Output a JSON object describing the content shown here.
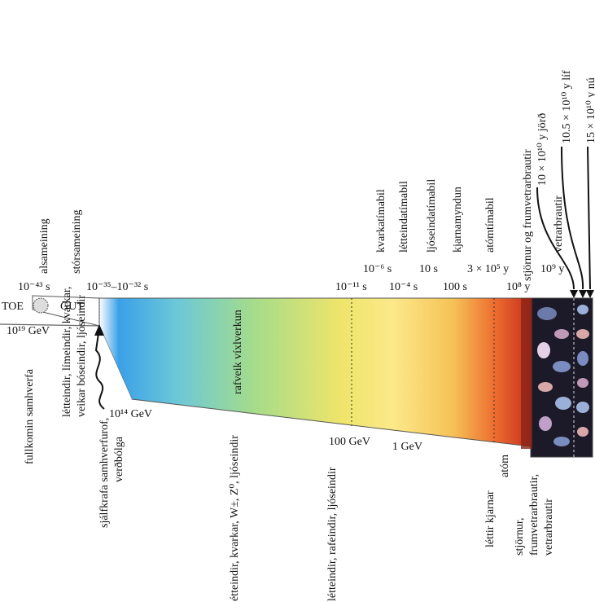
{
  "top_labels": {
    "alsameining": "alsameining",
    "storsameining": "stórsameining",
    "kvarkatimabil": "kvarkatímabil",
    "lettneindatimabil": "létteindatímabil",
    "ljoseindatimabil": "ljóseindatímabil",
    "kjarnamyndun": "kjarnamyndun",
    "atomtimabil": "atómtímabil",
    "stjornur": "stjörnur og frumvetrarbrautir",
    "vetrarbrautir": "vetrarbrautir",
    "jord": "10 × 10¹⁰ y jörð",
    "lif": "10.5 × 10¹⁰ y líf",
    "nu": "15 × 10¹⁰ y nú"
  },
  "time_ticks": {
    "t1": "10⁻⁴³ s",
    "t2": "10⁻³⁵–10⁻³² s",
    "t3": "10⁻¹¹ s",
    "t4": "10⁻⁶ s",
    "t5": "10⁻⁴ s",
    "t6": "10 s",
    "t7": "100 s",
    "t8": "3 × 10⁵ y",
    "t9": "10⁸ y",
    "t10": "10⁹ y"
  },
  "energy_labels": {
    "toe": "TOE",
    "gut": "GUT",
    "e19": "10¹⁹ GeV",
    "e14": "10¹⁴ GeV",
    "e100": "100 GeV",
    "e1": "1 GeV"
  },
  "band_label": "rafveik víxlverkun",
  "bottom_labels": {
    "fullkomin": "fullkomin samhverfa",
    "lettneindir_limeindir": "létteindir, límeindir, kvarkar,",
    "veikar": "veikar bóseindir, ljóseindir",
    "sjalfkrafa": "sjálfkrafa samhverfurof,",
    "verdbolga": "verðbólga",
    "ettneindir": "étteindir, kvarkar, W±, Z⁰, ljóseindir",
    "lettneindir_rafeindir": "létteindir, rafeindir, ljóseindir",
    "lettir_kjarnar": "léttir kjarnar",
    "atom": "atóm",
    "stjornur_b": "stjörnur,",
    "frumvetrarbrautir": "frumvetrarbrautir,",
    "vetrarbrautir_b": "vetrarbrautir"
  },
  "colors": {
    "spectrum": [
      "#ffffff",
      "#3aa0e8",
      "#6cc8d8",
      "#a6dc8a",
      "#eee56a",
      "#fbe98a",
      "#f6c256",
      "#ec6a2e",
      "#c6301e"
    ],
    "space": "#1c1a28"
  }
}
